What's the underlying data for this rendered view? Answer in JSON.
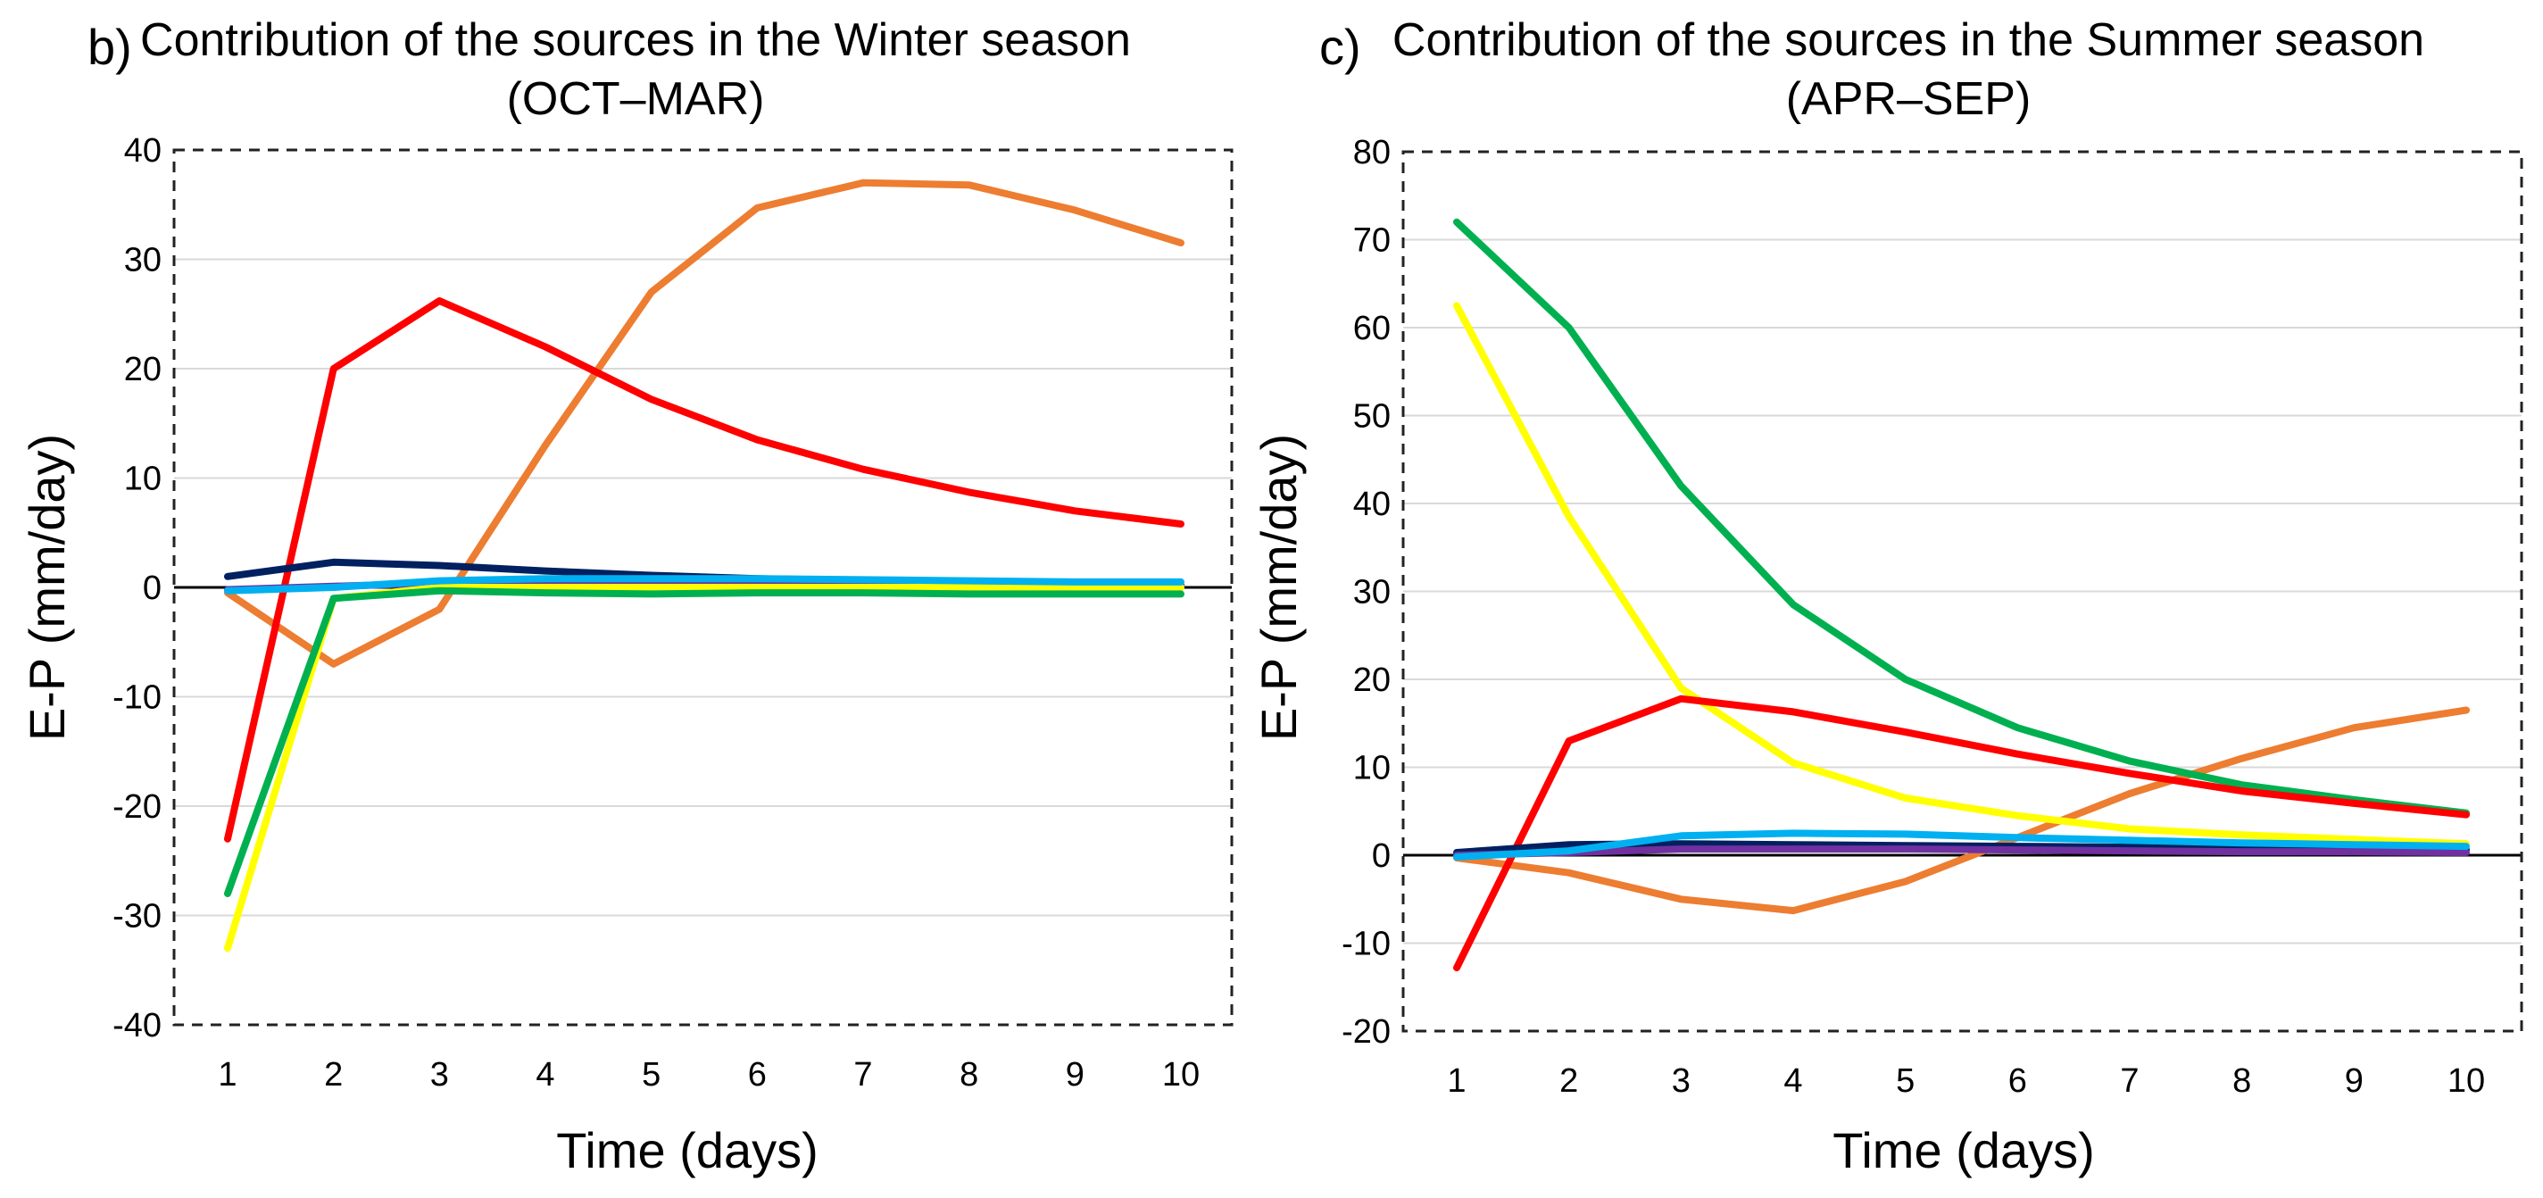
{
  "chart_data": [
    {
      "type": "line",
      "panel_label": "b)",
      "title_line1": "Contribution of the sources in the Winter season",
      "title_line2": "(OCT–MAR)",
      "xlabel": "Time (days)",
      "ylabel": "E-P (mm/day)",
      "x": [
        1,
        2,
        3,
        4,
        5,
        6,
        7,
        8,
        9,
        10
      ],
      "ylim": [
        -40,
        40
      ],
      "yticks": [
        -40,
        -30,
        -20,
        -10,
        0,
        10,
        20,
        30,
        40
      ],
      "series": [
        {
          "name": "orange",
          "color": "#ed7d31",
          "values": [
            -0.5,
            -7,
            -2,
            13,
            27,
            34.7,
            37,
            36.8,
            34.5,
            31.5
          ]
        },
        {
          "name": "red",
          "color": "#ff0000",
          "values": [
            -23,
            20,
            26.2,
            22,
            17.2,
            13.5,
            10.8,
            8.7,
            7,
            5.8
          ]
        },
        {
          "name": "navy",
          "color": "#002060",
          "values": [
            1,
            2.3,
            2,
            1.5,
            1.1,
            0.8,
            0.6,
            0.4,
            0.3,
            0.2
          ]
        },
        {
          "name": "purple",
          "color": "#7030a0",
          "values": [
            -0.2,
            0.1,
            0.4,
            0.5,
            0.5,
            0.5,
            0.4,
            0.3,
            0.3,
            0.2
          ]
        },
        {
          "name": "yellow",
          "color": "#ffff00",
          "values": [
            -33,
            -1,
            0,
            0,
            0,
            0,
            0,
            0,
            0,
            0
          ]
        },
        {
          "name": "green",
          "color": "#00b050",
          "values": [
            -28,
            -1,
            -0.3,
            -0.5,
            -0.6,
            -0.5,
            -0.5,
            -0.6,
            -0.6,
            -0.6
          ]
        },
        {
          "name": "light-blue",
          "color": "#00b0f0",
          "values": [
            -0.3,
            0,
            0.6,
            0.8,
            0.8,
            0.8,
            0.7,
            0.6,
            0.5,
            0.5
          ]
        }
      ]
    },
    {
      "type": "line",
      "panel_label": "c)",
      "title_line1": "Contribution of the sources in the Summer season",
      "title_line2": "(APR–SEP)",
      "xlabel": "Time (days)",
      "ylabel": "E-P (mm/day)",
      "x": [
        1,
        2,
        3,
        4,
        5,
        6,
        7,
        8,
        9,
        10
      ],
      "ylim": [
        -20,
        80
      ],
      "yticks": [
        -20,
        -10,
        0,
        10,
        20,
        30,
        40,
        50,
        60,
        70,
        80
      ],
      "series": [
        {
          "name": "orange",
          "color": "#ed7d31",
          "values": [
            -0.3,
            -2,
            -5,
            -6.3,
            -3,
            2,
            7,
            11,
            14.5,
            16.5
          ]
        },
        {
          "name": "yellow",
          "color": "#ffff00",
          "values": [
            62.5,
            38.5,
            19,
            10.5,
            6.5,
            4.5,
            3,
            2.3,
            1.8,
            1.3
          ]
        },
        {
          "name": "green",
          "color": "#00b050",
          "values": [
            72,
            60,
            42,
            28.5,
            20,
            14.5,
            10.7,
            8,
            6.3,
            4.8
          ]
        },
        {
          "name": "red",
          "color": "#ff0000",
          "values": [
            -12.8,
            13,
            17.8,
            16.3,
            14,
            11.5,
            9.3,
            7.3,
            5.9,
            4.6
          ]
        },
        {
          "name": "navy",
          "color": "#002060",
          "values": [
            0.3,
            1.2,
            1.3,
            1.2,
            1.1,
            1,
            0.9,
            0.8,
            0.7,
            0.6
          ]
        },
        {
          "name": "purple",
          "color": "#7030a0",
          "values": [
            0,
            0.3,
            0.7,
            0.7,
            0.7,
            0.6,
            0.5,
            0.4,
            0.4,
            0.3
          ]
        },
        {
          "name": "light-blue",
          "color": "#00b0f0",
          "values": [
            -0.2,
            0.5,
            2.2,
            2.5,
            2.4,
            2,
            1.7,
            1.4,
            1.2,
            1
          ]
        }
      ]
    }
  ]
}
